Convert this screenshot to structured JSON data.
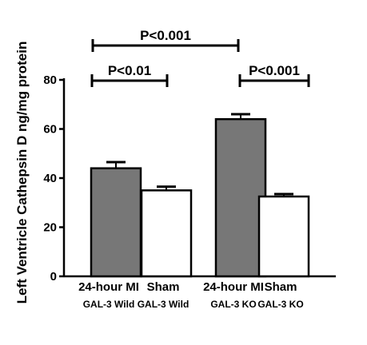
{
  "chart_data": {
    "type": "bar",
    "title": "",
    "xlabel": "",
    "ylabel": "Left  Ventricle Cathepsin D ng/mg protein",
    "ylim": [
      0,
      80
    ],
    "yticks": [
      0,
      20,
      40,
      60,
      80
    ],
    "categories": [
      {
        "line1": "24-hour MI",
        "line2": "GAL-3 Wild"
      },
      {
        "line1": "Sham",
        "line2": "GAL-3 Wild"
      },
      {
        "line1": "24-hour MI",
        "line2": "GAL-3 KO"
      },
      {
        "line1": "Sham",
        "line2": "GAL-3 KO"
      }
    ],
    "values": [
      44,
      35,
      64,
      32.5
    ],
    "errors": [
      2.5,
      1.5,
      2,
      1
    ],
    "bar_colors": [
      "#777777",
      "#ffffff",
      "#777777",
      "#ffffff"
    ],
    "significance": [
      {
        "from": 0,
        "to": 1,
        "label": "P<0.01"
      },
      {
        "from": 2,
        "to": 3,
        "label": "P<0.001"
      },
      {
        "from": 0,
        "to": 2,
        "label": "P<0.001"
      }
    ]
  }
}
